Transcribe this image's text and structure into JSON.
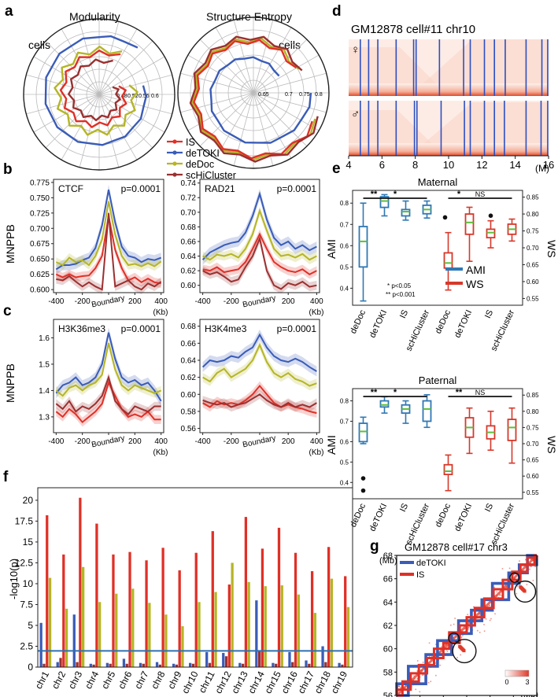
{
  "panel_labels": {
    "a": "a",
    "b": "b",
    "c": "c",
    "d": "d",
    "e": "e",
    "f": "f",
    "g": "g"
  },
  "colors": {
    "IS": "#e03027",
    "deTOKI": "#3a5cb8",
    "deDoc": "#b5b526",
    "scHiCluster": "#9b3030",
    "hline": "#2f6fb0",
    "AMI": "#2f78b4",
    "WS": "#d6382a",
    "heat": "#e03a2a"
  },
  "panel_a": {
    "legend": [
      "IS",
      "deTOKI",
      "deDoc",
      "scHiCluster"
    ],
    "plots": [
      {
        "title": "Modularity",
        "cells_label": "cells",
        "rings": [
          "0.48",
          "0.52",
          "0.56",
          "0.6"
        ]
      },
      {
        "title": "Structure Entropy",
        "cells_label": "cells",
        "rings": [
          "0.65",
          "0.7",
          "0.75",
          "0.8"
        ]
      }
    ]
  },
  "chart_data": [
    {
      "type": "line",
      "id": "CTCF",
      "title": "CTCF",
      "pvalue": "p=0.0001",
      "ylabel": "MNPPB",
      "xlabel": "Boundary",
      "xunit": "(Kb)",
      "x": [
        -400,
        -350,
        -300,
        -250,
        -200,
        -150,
        -100,
        -50,
        0,
        50,
        100,
        150,
        200,
        250,
        300,
        350,
        400
      ],
      "xticks": [
        "-400",
        "-200",
        "Boundary",
        "200",
        "400"
      ],
      "yticks": [
        "0.600",
        "0.625",
        "0.650",
        "0.675",
        "0.700",
        "0.725",
        "0.750",
        "0.775"
      ],
      "ylim": [
        0.595,
        0.78
      ],
      "series": [
        {
          "name": "deTOKI",
          "values": [
            0.633,
            0.64,
            0.64,
            0.642,
            0.648,
            0.652,
            0.668,
            0.705,
            0.763,
            0.71,
            0.67,
            0.655,
            0.652,
            0.645,
            0.65,
            0.648,
            0.652
          ]
        },
        {
          "name": "deDoc",
          "values": [
            0.645,
            0.64,
            0.652,
            0.645,
            0.648,
            0.64,
            0.655,
            0.682,
            0.744,
            0.69,
            0.655,
            0.64,
            0.642,
            0.638,
            0.643,
            0.638,
            0.646
          ]
        },
        {
          "name": "IS",
          "values": [
            0.625,
            0.62,
            0.625,
            0.62,
            0.622,
            0.623,
            0.635,
            0.655,
            0.72,
            0.665,
            0.635,
            0.615,
            0.62,
            0.612,
            0.618,
            0.612,
            0.61
          ]
        },
        {
          "name": "scHiCluster",
          "values": [
            0.617,
            0.615,
            0.622,
            0.613,
            0.605,
            0.612,
            0.605,
            0.6,
            0.725,
            0.605,
            0.61,
            0.615,
            0.605,
            0.6,
            0.61,
            0.605,
            0.613
          ]
        }
      ]
    },
    {
      "type": "line",
      "id": "RAD21",
      "title": "RAD21",
      "pvalue": "p=0.0001",
      "ylabel": "",
      "xlabel": "Boundary",
      "xunit": "(Kb)",
      "x": [
        -400,
        -350,
        -300,
        -250,
        -200,
        -150,
        -100,
        -50,
        0,
        50,
        100,
        150,
        200,
        250,
        300,
        350,
        400
      ],
      "xticks": [
        "-400",
        "-200",
        "Boundary",
        "200",
        "400"
      ],
      "yticks": [
        "0.60",
        "0.62",
        "0.64",
        "0.66",
        "0.68",
        "0.70",
        "0.72",
        "0.74"
      ],
      "ylim": [
        0.59,
        0.745
      ],
      "series": [
        {
          "name": "deTOKI",
          "values": [
            0.635,
            0.645,
            0.65,
            0.655,
            0.658,
            0.66,
            0.672,
            0.695,
            0.725,
            0.69,
            0.665,
            0.655,
            0.66,
            0.65,
            0.655,
            0.648,
            0.653
          ]
        },
        {
          "name": "deDoc",
          "values": [
            0.64,
            0.635,
            0.642,
            0.64,
            0.643,
            0.638,
            0.65,
            0.67,
            0.702,
            0.675,
            0.65,
            0.64,
            0.642,
            0.638,
            0.643,
            0.635,
            0.64
          ]
        },
        {
          "name": "IS",
          "values": [
            0.622,
            0.62,
            0.625,
            0.618,
            0.62,
            0.622,
            0.632,
            0.65,
            0.67,
            0.65,
            0.632,
            0.625,
            0.62,
            0.618,
            0.622,
            0.615,
            0.62
          ]
        },
        {
          "name": "scHiCluster",
          "values": [
            0.62,
            0.615,
            0.618,
            0.612,
            0.605,
            0.608,
            0.625,
            0.64,
            0.664,
            0.62,
            0.6,
            0.595,
            0.603,
            0.6,
            0.605,
            0.598,
            0.6
          ]
        }
      ]
    },
    {
      "type": "line",
      "id": "H3K36me3",
      "title": "H3K36me3",
      "pvalue": "p=0.0001",
      "ylabel": "MNPPB",
      "xlabel": "Boundary",
      "xunit": "(Kb)",
      "x": [
        -400,
        -350,
        -300,
        -250,
        -200,
        -150,
        -100,
        -50,
        0,
        50,
        100,
        150,
        200,
        250,
        300,
        350,
        400
      ],
      "xticks": [
        "-400",
        "-200",
        "Boundary",
        "200",
        "400"
      ],
      "yticks": [
        "1.3",
        "1.4",
        "1.5",
        "1.6"
      ],
      "ylim": [
        1.24,
        1.67
      ],
      "series": [
        {
          "name": "deTOKI",
          "values": [
            1.39,
            1.42,
            1.43,
            1.45,
            1.42,
            1.43,
            1.45,
            1.5,
            1.62,
            1.52,
            1.45,
            1.43,
            1.44,
            1.42,
            1.43,
            1.4,
            1.36
          ]
        },
        {
          "name": "deDoc",
          "values": [
            1.4,
            1.38,
            1.41,
            1.42,
            1.4,
            1.42,
            1.43,
            1.46,
            1.58,
            1.48,
            1.42,
            1.4,
            1.42,
            1.41,
            1.4,
            1.39,
            1.4
          ]
        },
        {
          "name": "IS",
          "values": [
            1.32,
            1.3,
            1.33,
            1.31,
            1.28,
            1.3,
            1.32,
            1.35,
            1.43,
            1.38,
            1.33,
            1.3,
            1.31,
            1.3,
            1.32,
            1.29,
            1.29
          ]
        },
        {
          "name": "scHiCluster",
          "values": [
            1.35,
            1.33,
            1.36,
            1.32,
            1.34,
            1.33,
            1.35,
            1.38,
            1.45,
            1.36,
            1.33,
            1.31,
            1.34,
            1.33,
            1.32,
            1.34,
            1.34
          ]
        }
      ]
    },
    {
      "type": "line",
      "id": "H3K4me3",
      "title": "H3K4me3",
      "pvalue": "p=0.0001",
      "ylabel": "",
      "xlabel": "Boundary",
      "xunit": "(Kb)",
      "x": [
        -400,
        -350,
        -300,
        -250,
        -200,
        -150,
        -100,
        -50,
        0,
        50,
        100,
        150,
        200,
        250,
        300,
        350,
        400
      ],
      "xticks": [
        "-400",
        "-200",
        "Boundary",
        "200",
        "400"
      ],
      "yticks": [
        "0.56",
        "0.58",
        "0.60",
        "0.62",
        "0.64",
        "0.66",
        "0.68"
      ],
      "ylim": [
        0.555,
        0.688
      ],
      "series": [
        {
          "name": "deTOKI",
          "values": [
            0.632,
            0.64,
            0.638,
            0.64,
            0.645,
            0.643,
            0.65,
            0.655,
            0.67,
            0.655,
            0.645,
            0.64,
            0.638,
            0.642,
            0.638,
            0.632,
            0.627
          ]
        },
        {
          "name": "deDoc",
          "values": [
            0.62,
            0.615,
            0.625,
            0.63,
            0.62,
            0.625,
            0.63,
            0.64,
            0.658,
            0.638,
            0.625,
            0.62,
            0.625,
            0.618,
            0.615,
            0.61,
            0.613
          ]
        },
        {
          "name": "IS",
          "values": [
            0.59,
            0.585,
            0.592,
            0.588,
            0.59,
            0.588,
            0.593,
            0.6,
            0.61,
            0.6,
            0.59,
            0.585,
            0.588,
            0.585,
            0.583,
            0.58,
            0.578
          ]
        },
        {
          "name": "scHiCluster",
          "values": [
            0.593,
            0.59,
            0.588,
            0.59,
            0.585,
            0.588,
            0.59,
            0.595,
            0.6,
            0.593,
            0.588,
            0.585,
            0.59,
            0.585,
            0.588,
            0.585,
            0.59
          ]
        }
      ]
    },
    {
      "type": "bar",
      "id": "f",
      "categories": [
        "chr1",
        "chr2",
        "chr3",
        "chr4",
        "chr5",
        "chr6",
        "chr7",
        "chr8",
        "chr9",
        "chr10",
        "chr11",
        "chr12",
        "chr13",
        "chr14",
        "chr15",
        "chr16",
        "chr17",
        "chr18",
        "chr19"
      ],
      "ylabel": "-log10(p)",
      "yticks": [
        "0",
        "2.5",
        "5",
        "7.5",
        "10",
        "12.5",
        "15",
        "17.5",
        "20"
      ],
      "ylim": [
        0,
        21.5
      ],
      "threshold": 1.95,
      "series": [
        {
          "name": "deTOKI",
          "values": [
            5.3,
            0.6,
            6.3,
            0.4,
            0.5,
            1.0,
            0.5,
            0.6,
            0.4,
            0.5,
            1.8,
            1.7,
            0.5,
            8.0,
            0.5,
            1.8,
            0.8,
            2.5,
            0.5
          ]
        },
        {
          "name": "scHiCluster",
          "values": [
            0.4,
            1.1,
            0.6,
            0.3,
            0.4,
            0.4,
            0.4,
            0.3,
            0.3,
            0.4,
            0.5,
            1.3,
            0.4,
            1.9,
            0.4,
            0.6,
            0.4,
            0.6,
            0.3
          ]
        },
        {
          "name": "IS",
          "values": [
            18.2,
            13.5,
            20.3,
            17.2,
            13.5,
            13.8,
            12.8,
            14.3,
            11.6,
            13.7,
            16.3,
            9.9,
            18.0,
            14.2,
            16.7,
            13.7,
            11.5,
            14.4,
            10.9
          ]
        },
        {
          "name": "deDoc",
          "values": [
            10.7,
            7.0,
            12.0,
            7.8,
            8.8,
            9.4,
            7.7,
            6.3,
            4.9,
            7.8,
            9.0,
            12.5,
            10.2,
            9.7,
            9.8,
            8.7,
            6.5,
            10.6,
            7.2
          ]
        }
      ]
    }
  ],
  "panel_d": {
    "title": "GM12878 cell#11 chr10",
    "female": "♀",
    "male": "♂",
    "xticks": [
      "4",
      "6",
      "8",
      "10",
      "12",
      "14",
      "16"
    ],
    "xunit": "(M)",
    "boundaries_top": [
      4.7,
      5.2,
      5.75,
      6.85,
      7.9,
      8.05,
      9.45,
      10.9,
      11.3,
      12.15,
      12.75,
      13.4,
      14.65,
      15.6,
      15.95
    ],
    "boundaries_bottom": [
      4.7,
      5.2,
      5.75,
      6.85,
      7.95,
      8.1,
      9.55,
      10.95,
      11.3,
      12.15,
      12.75,
      13.35,
      14.65,
      15.55,
      15.95
    ]
  },
  "panel_e": {
    "categories": [
      "deDoc",
      "deTOKI",
      "IS",
      "scHiCluster",
      "deDoc",
      "deTOKI",
      "IS",
      "scHiCluster"
    ],
    "legend": [
      "AMI",
      "WS"
    ],
    "left_label": "AMI",
    "right_label": "WS",
    "note1": "* p<0.05",
    "note2": "** p<0.001",
    "plots": [
      {
        "title": "Maternal",
        "sig": [
          "**",
          "*",
          "*",
          "NS"
        ],
        "left_ticks": [
          "0.4",
          "0.5",
          "0.6",
          "0.7",
          "0.8"
        ],
        "right_ticks": [
          "0.55",
          "0.60",
          "0.65",
          "0.70",
          "0.75",
          "0.80",
          "0.85"
        ],
        "left_range": [
          0.32,
          0.86
        ],
        "right_range": [
          0.53,
          0.87
        ],
        "boxes": [
          [
            0.34,
            0.5,
            0.62,
            0.69,
            0.8
          ],
          [
            0.74,
            0.78,
            0.81,
            0.83,
            0.84
          ],
          [
            0.72,
            0.74,
            0.76,
            0.77,
            0.81
          ],
          [
            0.73,
            0.75,
            0.77,
            0.79,
            0.81
          ],
          [
            0.575,
            0.64,
            0.655,
            0.685,
            0.745
          ],
          [
            0.66,
            0.74,
            0.775,
            0.8,
            0.82
          ],
          [
            0.7,
            0.73,
            0.745,
            0.755,
            0.78
          ],
          [
            0.72,
            0.74,
            0.755,
            0.77,
            0.785
          ]
        ],
        "outliers": [
          [
            4,
            0.79
          ],
          [
            6,
            0.795
          ]
        ]
      },
      {
        "title": "Paternal",
        "sig": [
          "**",
          "*",
          "**",
          "NS"
        ],
        "left_ticks": [
          "0.4",
          "0.5",
          "0.6",
          "0.7",
          "0.8"
        ],
        "right_ticks": [
          "0.55",
          "0.60",
          "0.65",
          "0.70",
          "0.75",
          "0.80",
          "0.85"
        ],
        "left_range": [
          0.32,
          0.86
        ],
        "right_range": [
          0.53,
          0.87
        ],
        "boxes": [
          [
            0.59,
            0.6,
            0.65,
            0.69,
            0.72
          ],
          [
            0.74,
            0.77,
            0.78,
            0.8,
            0.82
          ],
          [
            0.69,
            0.74,
            0.76,
            0.78,
            0.8
          ],
          [
            0.67,
            0.7,
            0.76,
            0.8,
            0.83
          ],
          [
            0.555,
            0.605,
            0.615,
            0.635,
            0.665
          ],
          [
            0.67,
            0.72,
            0.75,
            0.78,
            0.81
          ],
          [
            0.68,
            0.715,
            0.735,
            0.755,
            0.8
          ],
          [
            0.64,
            0.71,
            0.75,
            0.775,
            0.81
          ]
        ],
        "outliers": [
          [
            0,
            0.42
          ],
          [
            0,
            0.36
          ]
        ]
      }
    ]
  },
  "panel_g": {
    "title": "GM12878 cell#17 chr3",
    "unit_y": "(Mb)",
    "unit_x": "(Mb)",
    "ticks": [
      "56",
      "58",
      "60",
      "62",
      "64",
      "66",
      "68"
    ],
    "range": [
      56,
      68
    ],
    "legend": [
      "deTOKI",
      "IS"
    ],
    "scale_min": "0",
    "scale_max": "3",
    "deTOKI_bounds": [
      56,
      57,
      58.5,
      59.5,
      60.7,
      61.3,
      62.4,
      63.3,
      64.2,
      65.6,
      66.5,
      67.2,
      68
    ],
    "IS_bounds": [
      56,
      56.5,
      57.2,
      57.9,
      58.6,
      59.2,
      60,
      60.5,
      61.4,
      62,
      62.7,
      63.5,
      64.3,
      65.1,
      65.9,
      66.6,
      67.2,
      67.8,
      68
    ],
    "circles": [
      [
        60.9,
        60.9,
        0.45
      ],
      [
        61.8,
        59.8,
        1.0
      ],
      [
        66.1,
        66.1,
        0.4
      ],
      [
        67.0,
        64.9,
        0.9
      ]
    ]
  }
}
